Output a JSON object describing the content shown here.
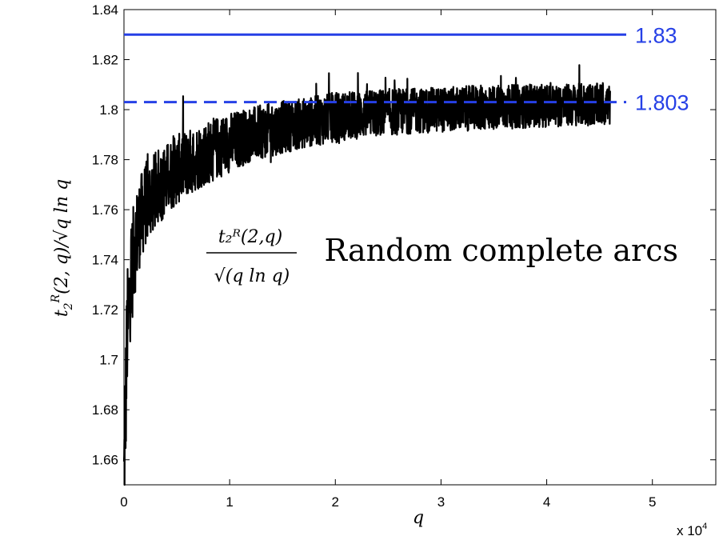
{
  "chart_data": {
    "type": "line",
    "title": "",
    "xlabel": "q",
    "ylabel": "t_2^R(2,q)/√(q ln q)",
    "xlim": [
      0,
      5.6
    ],
    "ylim": [
      1.65,
      1.84
    ],
    "x_unit_multiplier": "x 10^4",
    "x_ticks": [
      0,
      1,
      2,
      3,
      4,
      5
    ],
    "y_ticks": [
      1.66,
      1.68,
      1.7,
      1.72,
      1.74,
      1.76,
      1.78,
      1.8,
      1.82,
      1.84
    ],
    "x_tick_labels": [
      "0",
      "1",
      "2",
      "3",
      "4",
      "5"
    ],
    "y_tick_labels": [
      "1.66",
      "1.68",
      "1.7",
      "1.72",
      "1.74",
      "1.76",
      "1.78",
      "1.8",
      "1.82",
      "1.84"
    ],
    "grid": false,
    "series": [
      {
        "color": "#000000",
        "x": [
          0.0,
          0.03,
          0.06,
          0.1,
          0.15,
          0.2,
          0.3,
          0.4,
          0.5,
          0.7,
          0.9,
          1.0,
          1.2,
          1.5,
          1.75,
          2.0,
          2.25,
          2.5,
          2.75,
          3.0,
          3.5,
          4.0,
          4.3,
          4.6
        ],
        "y": [
          1.65,
          1.71,
          1.73,
          1.745,
          1.755,
          1.762,
          1.768,
          1.772,
          1.776,
          1.781,
          1.785,
          1.787,
          1.79,
          1.793,
          1.795,
          1.797,
          1.798,
          1.799,
          1.7995,
          1.8,
          1.801,
          1.8015,
          1.802,
          1.802
        ],
        "spread": [
          0.06,
          0.05,
          0.045,
          0.04,
          0.036,
          0.034,
          0.031,
          0.029,
          0.028,
          0.026,
          0.025,
          0.024,
          0.022,
          0.021,
          0.02,
          0.02,
          0.019,
          0.019,
          0.018,
          0.018,
          0.018,
          0.017,
          0.017,
          0.017
        ]
      }
    ],
    "reference_lines": [
      {
        "value": 1.83,
        "label": "1.83",
        "style": "solid",
        "color": "#2640e6"
      },
      {
        "value": 1.803,
        "label": "1.803",
        "style": "dashed",
        "color": "#2640e6"
      }
    ],
    "annotations": {
      "formula_numerator": "t₂ᴿ(2,q)",
      "formula_denominator": "√(q ln q)",
      "caption": "Random complete arcs"
    }
  }
}
